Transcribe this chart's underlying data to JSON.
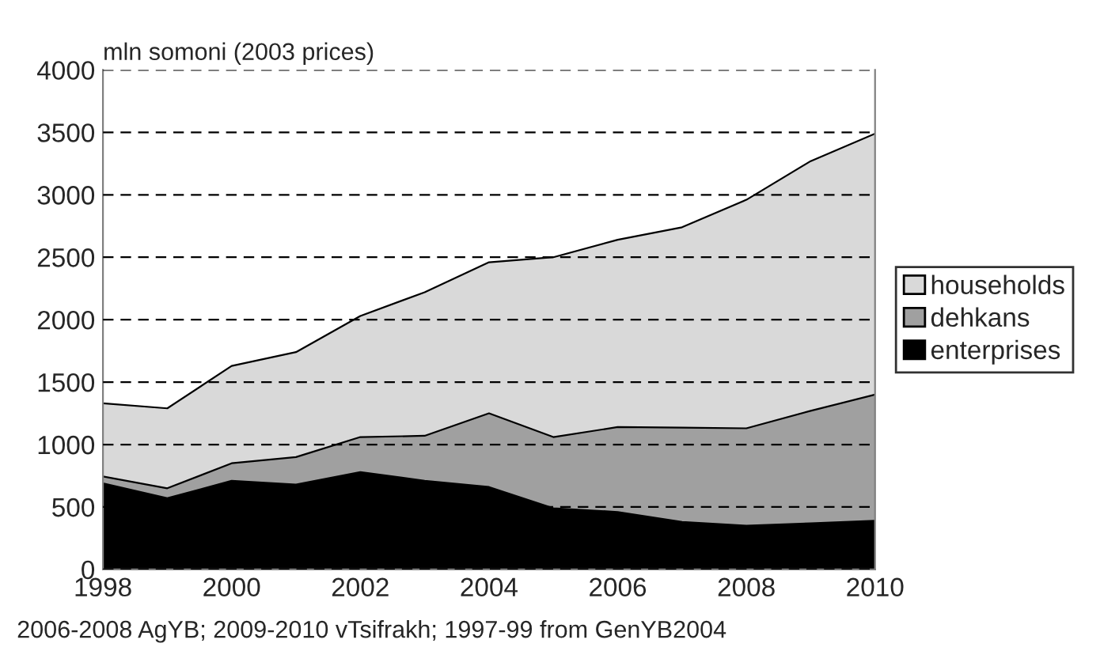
{
  "chart_data": {
    "type": "area",
    "stacked": true,
    "ylabel": "mln somoni (2003 prices)",
    "x": [
      1998,
      1999,
      2000,
      2001,
      2002,
      2003,
      2004,
      2005,
      2006,
      2007,
      2008,
      2009,
      2010
    ],
    "series": [
      {
        "name": "enterprises",
        "color": "#000000",
        "values": [
          690,
          570,
          710,
          680,
          780,
          710,
          660,
          490,
          460,
          380,
          350,
          370,
          390
        ]
      },
      {
        "name": "dehkans",
        "color": "#a0a0a0",
        "values": [
          55,
          80,
          140,
          220,
          280,
          360,
          590,
          570,
          680,
          755,
          780,
          900,
          1010
        ]
      },
      {
        "name": "households",
        "color": "#d9d9d9",
        "values": [
          585,
          640,
          780,
          840,
          970,
          1150,
          1210,
          1440,
          1500,
          1605,
          1830,
          2000,
          2090
        ]
      }
    ],
    "xlim": [
      1998,
      2010
    ],
    "xticks": [
      1998,
      2000,
      2002,
      2004,
      2006,
      2008,
      2010
    ],
    "ylim": [
      0,
      4000
    ],
    "yticks": [
      0,
      500,
      1000,
      1500,
      2000,
      2500,
      3000,
      3500,
      4000
    ],
    "grid": "y",
    "legend": "right",
    "annotations": [
      "2006-2008 AgYB; 2009-2010 vTsifrakh; 1997-99 from GenYB2004"
    ]
  }
}
